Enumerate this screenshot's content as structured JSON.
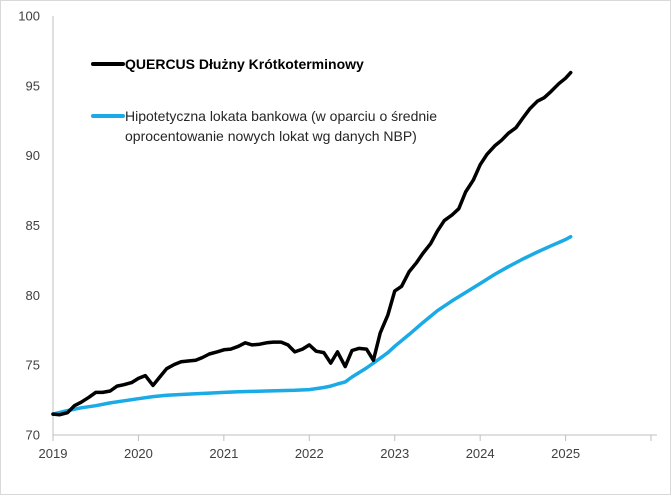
{
  "chart_data": {
    "type": "line",
    "title": "",
    "xlabel": "",
    "ylabel": "",
    "xlim": [
      2019.0,
      2026.07
    ],
    "ylim": [
      70,
      100
    ],
    "x_ticks": [
      2019,
      2020,
      2021,
      2022,
      2023,
      2024,
      2025
    ],
    "x_tick_labels": [
      "2019",
      "2020",
      "2021",
      "2022",
      "2023",
      "2024",
      "2025"
    ],
    "y_ticks": [
      70,
      75,
      80,
      85,
      90,
      95,
      100
    ],
    "y_tick_labels": [
      "70",
      "75",
      "80",
      "85",
      "90",
      "95",
      "100"
    ],
    "grid": false,
    "legend": {
      "placement": "top-left",
      "entries": [
        {
          "series": 0,
          "lines": [
            "QUERCUS Dłużny Krótkoterminowy"
          ]
        },
        {
          "series": 1,
          "lines": [
            "Hipotetyczna lokata bankowa (w oparciu o średnie",
            "oprocentowanie nowych lokat wg danych NBP)"
          ]
        }
      ]
    },
    "series": [
      {
        "name": "QUERCUS Dłużny Krótkoterminowy",
        "color": "#000000",
        "x": [
          2019.0,
          2019.08,
          2019.17,
          2019.25,
          2019.33,
          2019.42,
          2019.5,
          2019.58,
          2019.67,
          2019.75,
          2019.83,
          2019.92,
          2020.0,
          2020.08,
          2020.17,
          2020.25,
          2020.33,
          2020.42,
          2020.5,
          2020.58,
          2020.67,
          2020.75,
          2020.83,
          2020.92,
          2021.0,
          2021.08,
          2021.17,
          2021.25,
          2021.33,
          2021.42,
          2021.5,
          2021.58,
          2021.67,
          2021.75,
          2021.83,
          2021.92,
          2022.0,
          2022.08,
          2022.17,
          2022.25,
          2022.33,
          2022.42,
          2022.5,
          2022.58,
          2022.67,
          2022.75,
          2022.83,
          2022.92,
          2023.0,
          2023.08,
          2023.17,
          2023.25,
          2023.33,
          2023.42,
          2023.5,
          2023.58,
          2023.67,
          2023.75,
          2023.83,
          2023.92,
          2024.0,
          2024.08,
          2024.17,
          2024.25,
          2024.33,
          2024.42,
          2024.5,
          2024.58,
          2024.67,
          2024.75,
          2024.83,
          2024.92,
          2025.0,
          2025.06
        ],
        "values": [
          71.5,
          71.45,
          71.6,
          72.1,
          72.35,
          72.7,
          73.05,
          73.05,
          73.15,
          73.5,
          73.6,
          73.75,
          74.05,
          74.25,
          73.55,
          74.15,
          74.75,
          75.05,
          75.25,
          75.3,
          75.35,
          75.55,
          75.8,
          75.95,
          76.1,
          76.15,
          76.35,
          76.6,
          76.45,
          76.5,
          76.6,
          76.65,
          76.65,
          76.45,
          75.95,
          76.15,
          76.45,
          76.0,
          75.9,
          75.15,
          75.95,
          74.9,
          76.05,
          76.2,
          76.15,
          75.35,
          77.3,
          78.6,
          80.3,
          80.65,
          81.7,
          82.3,
          83.0,
          83.7,
          84.6,
          85.35,
          85.75,
          86.2,
          87.4,
          88.25,
          89.35,
          90.1,
          90.7,
          91.1,
          91.6,
          92.0,
          92.7,
          93.35,
          93.9,
          94.15,
          94.6,
          95.15,
          95.55,
          95.95
        ]
      },
      {
        "name": "Hipotetyczna lokata bankowa (w oparciu o średnie oprocentowanie nowych lokat wg danych NBP)",
        "color": "#1aabe6",
        "x": [
          2019.0,
          2019.17,
          2019.33,
          2019.5,
          2019.67,
          2019.83,
          2020.0,
          2020.17,
          2020.33,
          2020.5,
          2020.67,
          2020.83,
          2021.0,
          2021.17,
          2021.33,
          2021.5,
          2021.67,
          2021.83,
          2022.0,
          2022.17,
          2022.25,
          2022.33,
          2022.42,
          2022.5,
          2022.58,
          2022.67,
          2022.75,
          2022.83,
          2022.92,
          2023.0,
          2023.17,
          2023.33,
          2023.5,
          2023.67,
          2023.83,
          2024.0,
          2024.17,
          2024.33,
          2024.5,
          2024.67,
          2024.83,
          2025.0,
          2025.06
        ],
        "values": [
          71.5,
          71.75,
          71.95,
          72.1,
          72.3,
          72.45,
          72.6,
          72.75,
          72.85,
          72.9,
          72.95,
          73.0,
          73.05,
          73.1,
          73.12,
          73.15,
          73.18,
          73.2,
          73.25,
          73.4,
          73.5,
          73.65,
          73.8,
          74.15,
          74.45,
          74.8,
          75.15,
          75.5,
          75.9,
          76.35,
          77.2,
          78.05,
          78.9,
          79.6,
          80.2,
          80.85,
          81.5,
          82.05,
          82.6,
          83.1,
          83.55,
          84.0,
          84.2
        ]
      }
    ]
  }
}
